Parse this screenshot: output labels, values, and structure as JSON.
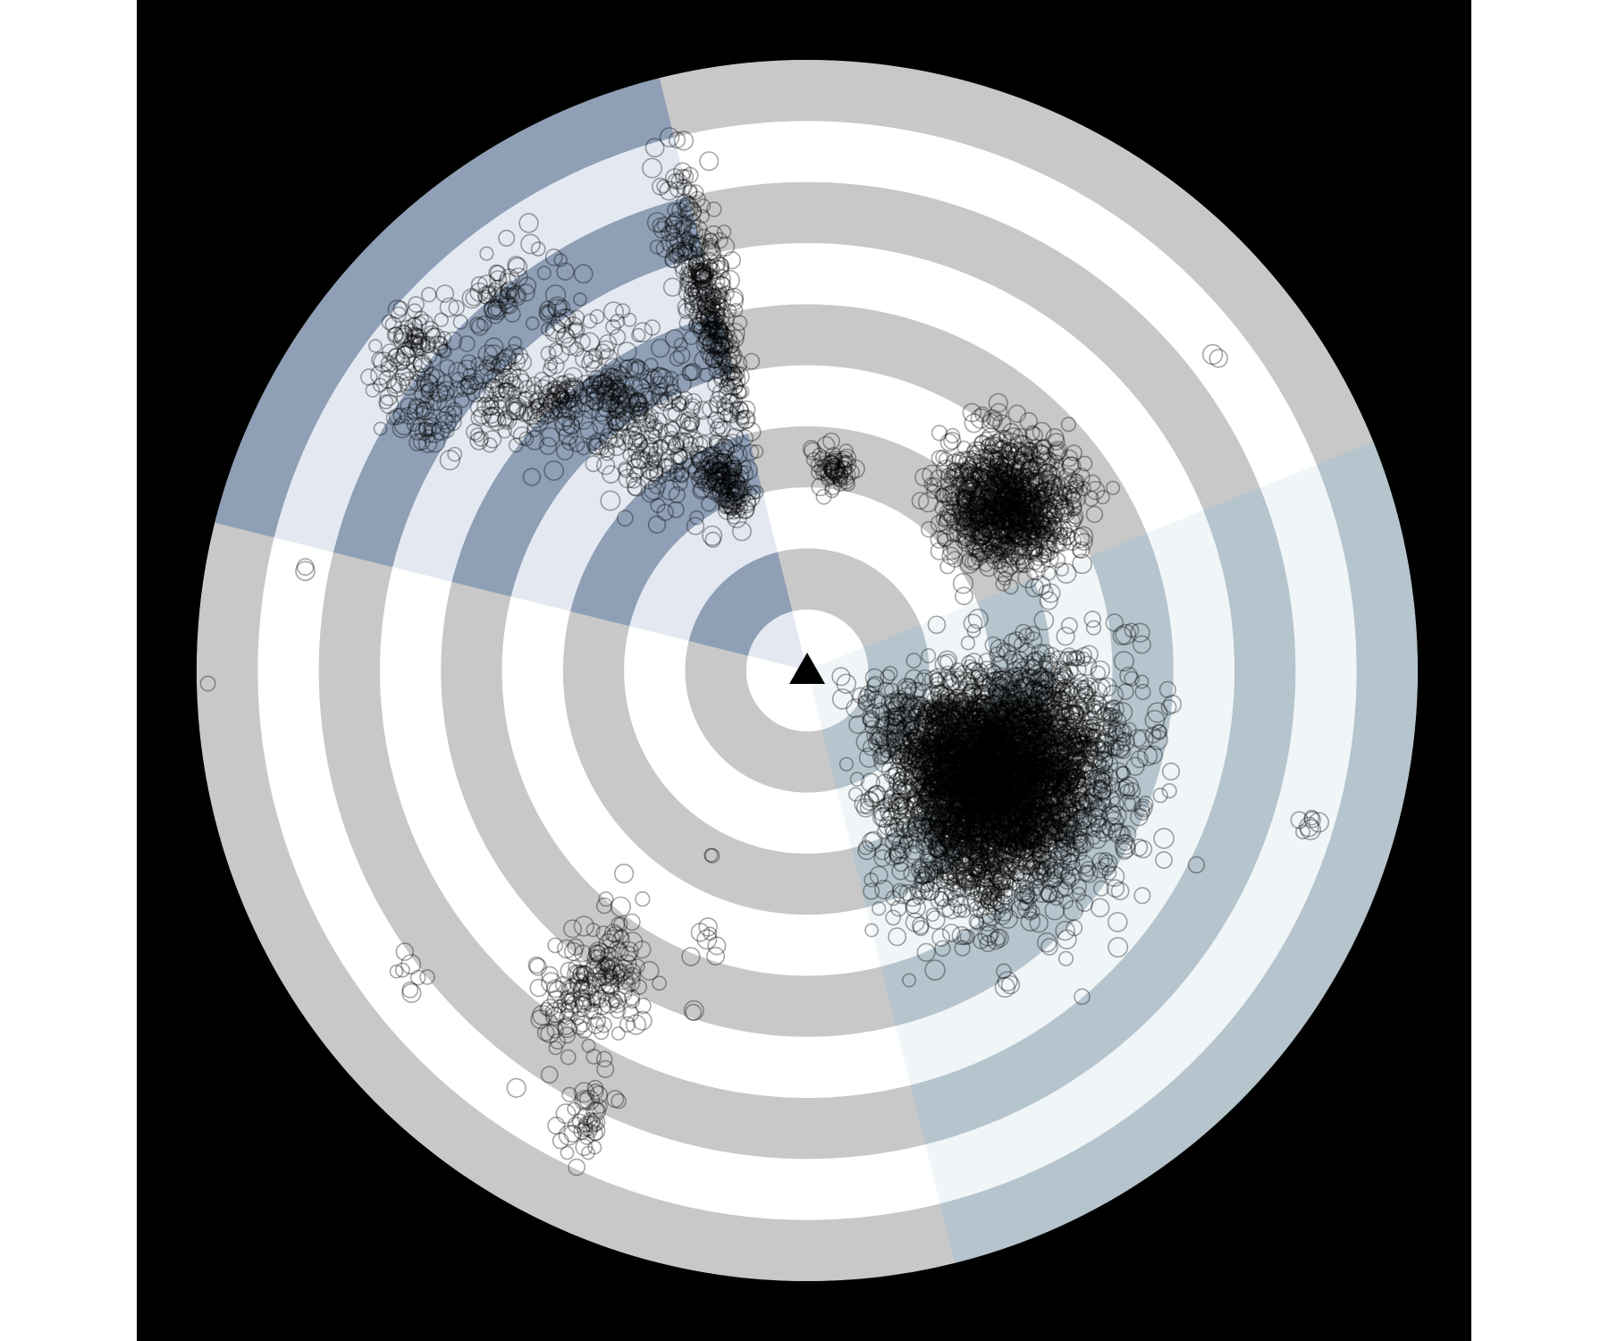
{
  "chart_data": {
    "type": "scatter",
    "coordinate_system": "polar",
    "title": "",
    "xlabel": "",
    "ylabel": "",
    "legend": "none",
    "grid": true,
    "background_color": "#000000",
    "radial_range": [
      0,
      10
    ],
    "ring_count": 10,
    "ring_colors": {
      "gray_band": "#c8c8c8",
      "white_band": "#ffffff"
    },
    "sectors": [
      {
        "start_bearing_deg": 284,
        "end_bearing_deg": 346,
        "colors": [
          "#e4e9f1",
          "#8e9fb6"
        ]
      },
      {
        "start_bearing_deg": 346,
        "end_bearing_deg": 68,
        "colors": [
          "#ffffff",
          "#c8c8c8"
        ]
      },
      {
        "start_bearing_deg": 68,
        "end_bearing_deg": 166,
        "colors": [
          "#f0f5f8",
          "#b5c4cd"
        ]
      },
      {
        "start_bearing_deg": 166,
        "end_bearing_deg": 284,
        "colors": [
          "#ffffff",
          "#c8c8c8"
        ]
      }
    ],
    "center_marker": {
      "shape": "triangle",
      "color": "#000000"
    },
    "point_style": {
      "marker": "circle-open",
      "stroke": "#000000",
      "opacity": 0.35
    },
    "series": [
      {
        "clusters": [
          {
            "bearing_deg": 120,
            "range": 3.7,
            "spread_deg": 26,
            "spread_range": 1.6,
            "count": 4200
          },
          {
            "bearing_deg": 50,
            "range": 4.3,
            "spread_deg": 13,
            "spread_range": 0.9,
            "count": 1000
          },
          {
            "bearing_deg": 8,
            "range": 3.3,
            "spread_deg": 5,
            "spread_range": 0.35,
            "count": 60
          },
          {
            "bearing_deg": 345,
            "range": 6.3,
            "spread_deg": 3,
            "spread_range": 1.9,
            "count": 340
          },
          {
            "bearing_deg": 337,
            "range": 3.4,
            "spread_deg": 5,
            "spread_range": 0.6,
            "count": 140
          },
          {
            "bearing_deg": 327,
            "range": 4.8,
            "spread_deg": 12,
            "spread_range": 1.4,
            "count": 260
          },
          {
            "bearing_deg": 325,
            "range": 7.0,
            "spread_deg": 6,
            "spread_range": 1.5,
            "count": 60
          },
          {
            "bearing_deg": 324,
            "range": 5.6,
            "spread_deg": 3,
            "spread_range": 0.3,
            "count": 40
          },
          {
            "bearing_deg": 318,
            "range": 6.0,
            "spread_deg": 3,
            "spread_range": 0.3,
            "count": 40
          },
          {
            "bearing_deg": 320,
            "range": 7.9,
            "spread_deg": 3,
            "spread_range": 0.3,
            "count": 30
          },
          {
            "bearing_deg": 313,
            "range": 6.6,
            "spread_deg": 6,
            "spread_range": 1.2,
            "count": 120
          },
          {
            "bearing_deg": 310,
            "range": 8.4,
            "spread_deg": 4,
            "spread_range": 0.5,
            "count": 70
          },
          {
            "bearing_deg": 305,
            "range": 7.6,
            "spread_deg": 5,
            "spread_range": 0.9,
            "count": 90
          },
          {
            "bearing_deg": 281,
            "range": 8.4,
            "spread_deg": 1,
            "spread_range": 0.05,
            "count": 2
          },
          {
            "bearing_deg": 268,
            "range": 9.8,
            "spread_deg": 1,
            "spread_range": 0.05,
            "count": 1
          },
          {
            "bearing_deg": 53,
            "range": 8.4,
            "spread_deg": 1,
            "spread_range": 0.05,
            "count": 2
          },
          {
            "bearing_deg": 107,
            "range": 8.6,
            "spread_deg": 1,
            "spread_range": 0.15,
            "count": 7
          },
          {
            "bearing_deg": 107,
            "range": 4.9,
            "spread_deg": 1,
            "spread_range": 0.05,
            "count": 1
          },
          {
            "bearing_deg": 117,
            "range": 5.2,
            "spread_deg": 1,
            "spread_range": 0.05,
            "count": 1
          },
          {
            "bearing_deg": 207,
            "range": 3.4,
            "spread_deg": 1,
            "spread_range": 0.05,
            "count": 2
          },
          {
            "bearing_deg": 203,
            "range": 4.7,
            "spread_deg": 4,
            "spread_range": 0.5,
            "count": 7
          },
          {
            "bearing_deg": 199,
            "range": 5.9,
            "spread_deg": 1,
            "spread_range": 0.05,
            "count": 2
          },
          {
            "bearing_deg": 214,
            "range": 6.3,
            "spread_deg": 7,
            "spread_range": 1.1,
            "count": 170
          },
          {
            "bearing_deg": 206,
            "range": 8.2,
            "spread_deg": 2,
            "spread_range": 0.6,
            "count": 40
          },
          {
            "bearing_deg": 216,
            "range": 5.3,
            "spread_deg": 2,
            "spread_range": 0.2,
            "count": 4
          },
          {
            "bearing_deg": 233,
            "range": 8.3,
            "spread_deg": 3,
            "spread_range": 0.4,
            "count": 8
          }
        ]
      }
    ]
  }
}
